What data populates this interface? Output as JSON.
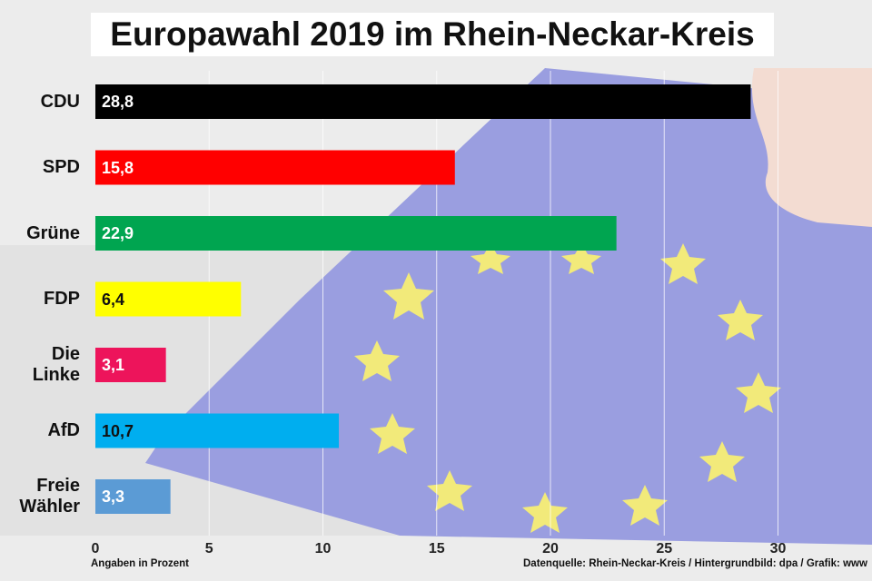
{
  "title": "Europawahl 2019 im Rhein-Neckar-Kreis",
  "note_left": "Angaben in Prozent",
  "note_right": "Datenquelle: Rhein-Neckar-Kreis  / Hintergrundbild: dpa / Grafik: www",
  "chart_data": {
    "type": "bar",
    "orientation": "horizontal",
    "categories": [
      "CDU",
      "SPD",
      "Grüne",
      "FDP",
      "Die\nLinke",
      "AfD",
      "Freie\nWähler"
    ],
    "values": [
      28.8,
      15.8,
      22.9,
      6.4,
      3.1,
      10.7,
      3.3
    ],
    "value_labels": [
      "28,8",
      "15,8",
      "22,9",
      "6,4",
      "3,1",
      "10,7",
      "3,3"
    ],
    "colors": [
      "#000000",
      "#ff0000",
      "#00a550",
      "#ffff00",
      "#ed145b",
      "#00aeef",
      "#5b9bd5"
    ],
    "label_colors": [
      "#ffffff",
      "#ffffff",
      "#ffffff",
      "#111111",
      "#ffffff",
      "#111111",
      "#ffffff"
    ],
    "xticks": [
      0,
      5,
      10,
      15,
      20,
      25,
      30
    ],
    "xlim": [
      0,
      34
    ],
    "grid": true
  }
}
